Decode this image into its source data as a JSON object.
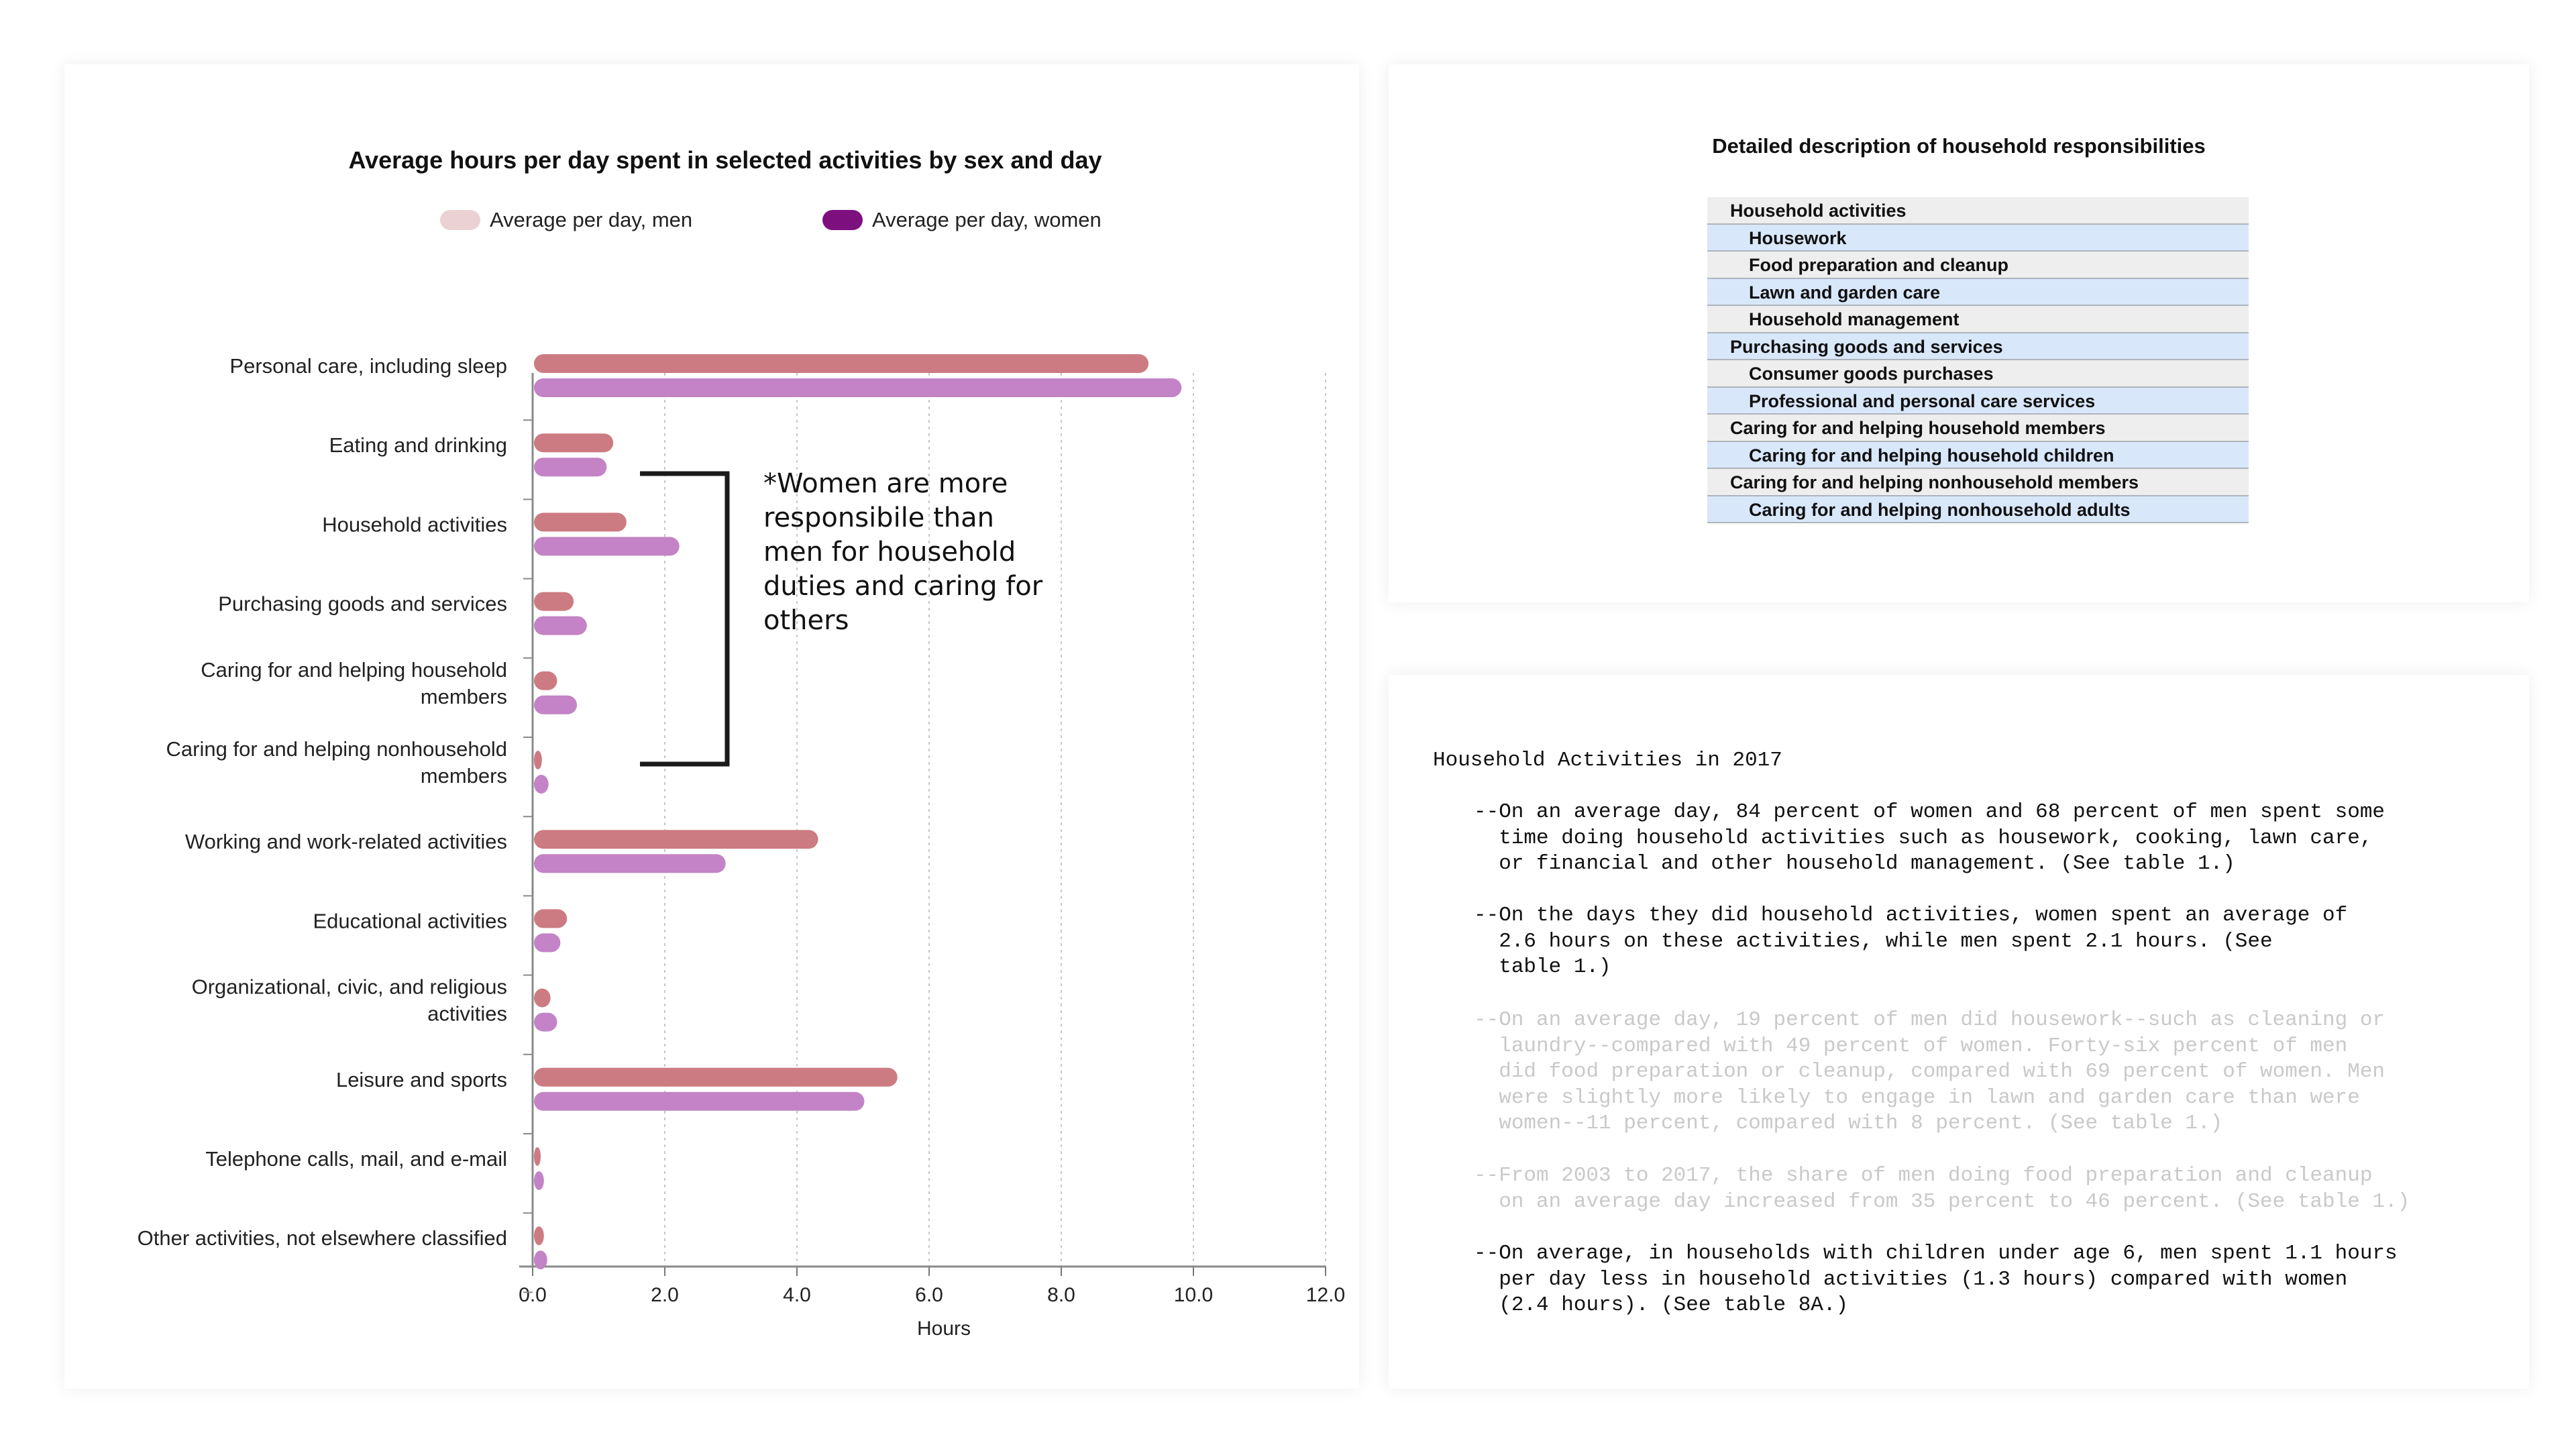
{
  "chart_panel": {
    "title": "Average hours per day spent in selected activities by sex and day",
    "annotation": "*Women are more responsibile than men for household duties and caring for others"
  },
  "chart_data": {
    "type": "bar",
    "orientation": "horizontal",
    "xlabel": "Hours",
    "xlim": [
      0,
      12
    ],
    "xticks": [
      "0.0",
      "2.0",
      "4.0",
      "6.0",
      "8.0",
      "10.0",
      "12.0"
    ],
    "grid": "vertical dashed",
    "legend_position": "top",
    "categories": [
      [
        "Personal care, including sleep"
      ],
      [
        "Eating and drinking"
      ],
      [
        "Household activities"
      ],
      [
        "Purchasing goods and services"
      ],
      [
        "Caring for and helping household",
        "members"
      ],
      [
        "Caring for and helping nonhousehold",
        "members"
      ],
      [
        "Working and work-related activities"
      ],
      [
        "Educational activities"
      ],
      [
        "Organizational, civic, and religious",
        "activities"
      ],
      [
        "Leisure and sports"
      ],
      [
        "Telephone calls, mail, and e-mail"
      ],
      [
        "Other activities, not elsewhere classified"
      ]
    ],
    "series": [
      {
        "name": "Average per day, men",
        "legend_color": "#ecd1d4",
        "bar_color": "#cd7b82",
        "values": [
          9.3,
          1.2,
          1.4,
          0.6,
          0.35,
          0.12,
          4.3,
          0.5,
          0.25,
          5.5,
          0.1,
          0.15
        ]
      },
      {
        "name": "Average per day, women",
        "legend_color": "#7d0f7e",
        "bar_color": "#c383c6",
        "values": [
          9.8,
          1.1,
          2.2,
          0.8,
          0.65,
          0.22,
          2.9,
          0.4,
          0.35,
          5.0,
          0.15,
          0.2
        ]
      }
    ]
  },
  "table_panel": {
    "title": "Detailed description of household responsibilities",
    "row_colors": {
      "gray": "#eeeeee",
      "blue": "#d9e7fb"
    },
    "rows": [
      {
        "label": "Household activities",
        "level": 0,
        "bg": "gray"
      },
      {
        "label": "Housework",
        "level": 1,
        "bg": "blue"
      },
      {
        "label": "Food preparation and cleanup",
        "level": 1,
        "bg": "gray"
      },
      {
        "label": "Lawn and garden care",
        "level": 1,
        "bg": "blue"
      },
      {
        "label": "Household management",
        "level": 1,
        "bg": "gray"
      },
      {
        "label": "Purchasing goods and services",
        "level": 0,
        "bg": "blue"
      },
      {
        "label": "Consumer goods purchases",
        "level": 1,
        "bg": "gray"
      },
      {
        "label": "Professional and personal care services",
        "level": 1,
        "bg": "blue"
      },
      {
        "label": "Caring for and helping household members",
        "level": 0,
        "bg": "gray"
      },
      {
        "label": "Caring for and helping household children",
        "level": 1,
        "bg": "blue"
      },
      {
        "label": "Caring for and helping nonhousehold members",
        "level": 0,
        "bg": "gray"
      },
      {
        "label": "Caring for and helping nonhousehold adults",
        "level": 1,
        "bg": "blue"
      }
    ]
  },
  "notes_panel": {
    "heading": "Household Activities in 2017",
    "notes": [
      {
        "text": "--On an average day, 84 percent of women and 68 percent of men spent some\n  time doing household activities such as housework, cooking, lawn care,\n  or financial and other household management. (See table 1.)",
        "faded": false
      },
      {
        "text": "--On the days they did household activities, women spent an average of\n  2.6 hours on these activities, while men spent 2.1 hours. (See\n  table 1.)",
        "faded": false
      },
      {
        "text": "--On an average day, 19 percent of men did housework--such as cleaning or\n  laundry--compared with 49 percent of women. Forty-six percent of men\n  did food preparation or cleanup, compared with 69 percent of women. Men\n  were slightly more likely to engage in lawn and garden care than were\n  women--11 percent, compared with 8 percent. (See table 1.)",
        "faded": true
      },
      {
        "text": "--From 2003 to 2017, the share of men doing food preparation and cleanup\n  on an average day increased from 35 percent to 46 percent. (See table 1.)",
        "faded": true
      },
      {
        "text": "--On average, in households with children under age 6, men spent 1.1 hours\n  per day less in household activities (1.3 hours) compared with women\n  (2.4 hours). (See table 8A.)",
        "faded": false
      }
    ]
  }
}
